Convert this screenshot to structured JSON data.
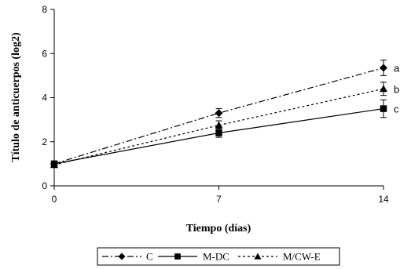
{
  "chart_data": {
    "type": "line",
    "title": "",
    "xlabel": "Tiempo (días)",
    "ylabel": "Título de anticuerpos (log2)",
    "x": [
      0,
      7,
      14
    ],
    "x_tick_labels": [
      "0",
      "7",
      "14"
    ],
    "y_tick_labels": [
      "0",
      "2",
      "4",
      "6",
      "8"
    ],
    "xlim": [
      0,
      14
    ],
    "ylim": [
      0,
      8
    ],
    "grid": false,
    "legend_position": "bottom",
    "series": [
      {
        "name": "C",
        "marker": "diamond",
        "line_style": "dash-dot",
        "color": "#000000",
        "values": [
          1.0,
          3.3,
          5.35
        ],
        "errors": [
          0.1,
          0.2,
          0.35
        ],
        "annotation": "a"
      },
      {
        "name": "M-DC",
        "marker": "square",
        "line_style": "solid",
        "color": "#000000",
        "values": [
          1.0,
          2.4,
          3.5
        ],
        "errors": [
          0.1,
          0.2,
          0.4
        ],
        "annotation": "c"
      },
      {
        "name": "M/CW-E",
        "marker": "triangle",
        "line_style": "dotted",
        "color": "#000000",
        "values": [
          0.95,
          2.75,
          4.4
        ],
        "errors": [
          0.1,
          0.2,
          0.3
        ],
        "annotation": "b"
      }
    ]
  }
}
